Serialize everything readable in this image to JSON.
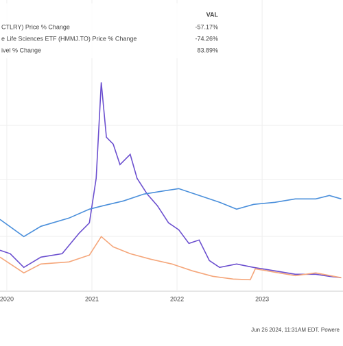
{
  "chart_data": {
    "type": "line",
    "legend_header": "VAL",
    "series": [
      {
        "name": "CTLRY) Price % Change",
        "value_label": "-57.17%",
        "color": "#6b4fcf",
        "x": [
          2019.92,
          2020.04,
          2020.2,
          2020.4,
          2020.65,
          2020.85,
          2020.97,
          2021.05,
          2021.11,
          2021.17,
          2021.25,
          2021.33,
          2021.45,
          2021.53,
          2021.65,
          2021.77,
          2021.9,
          2022.02,
          2022.14,
          2022.26,
          2022.38,
          2022.5,
          2022.7,
          2022.9,
          2023.15,
          2023.39,
          2023.63,
          2023.79,
          2023.93
        ],
        "values": [
          -8.4,
          -14.4,
          -38.4,
          -20.4,
          -14.4,
          21.6,
          39.6,
          117.6,
          285.6,
          189.6,
          177.6,
          141.6,
          159.6,
          117.6,
          90,
          69.6,
          39.6,
          27.6,
          3.6,
          9.6,
          -26.4,
          -38.4,
          -32.4,
          -38.4,
          -44.4,
          -50.4,
          -50.4,
          -54,
          -56.4
        ]
      },
      {
        "name": "e Life Sciences ETF (HMMJ.TO) Price % Change",
        "value_label": "-74.26%",
        "color": "#f5a67a",
        "x": [
          2019.92,
          2020.2,
          2020.4,
          2020.73,
          2020.97,
          2021.11,
          2021.25,
          2021.45,
          2021.69,
          2021.94,
          2022.18,
          2022.42,
          2022.66,
          2022.86,
          2022.92,
          2023.15,
          2023.39,
          2023.63,
          2023.93
        ],
        "values": [
          -20.4,
          -48,
          -32.4,
          -28.8,
          -16.8,
          15.6,
          -2.4,
          -14.4,
          -24,
          -32.4,
          -44.4,
          -54,
          -58.8,
          -60,
          -40.8,
          -46.8,
          -52.8,
          -48,
          -56.4
        ]
      },
      {
        "name": "ivel % Change",
        "value_label": "83.89%",
        "color": "#4a8fdb",
        "x": [
          2019.92,
          2020.2,
          2020.4,
          2020.73,
          2020.97,
          2021.13,
          2021.37,
          2021.61,
          2021.86,
          2022.02,
          2022.26,
          2022.5,
          2022.7,
          2022.9,
          2023.15,
          2023.39,
          2023.63,
          2023.79,
          2023.93
        ],
        "values": [
          45.6,
          15.6,
          33.6,
          48,
          63.6,
          69.6,
          78,
          90,
          96,
          99.6,
          87.6,
          75.6,
          63.6,
          72,
          75.6,
          81.6,
          81.6,
          87.6,
          81.6
        ]
      }
    ],
    "xlim": [
      2019.92,
      2023.95
    ],
    "xticks": [
      2020,
      2021,
      2022,
      2023
    ],
    "ylim": [
      -80,
      430
    ],
    "footer": "Jun 26 2024, 11:31AM EDT.  Powere"
  }
}
